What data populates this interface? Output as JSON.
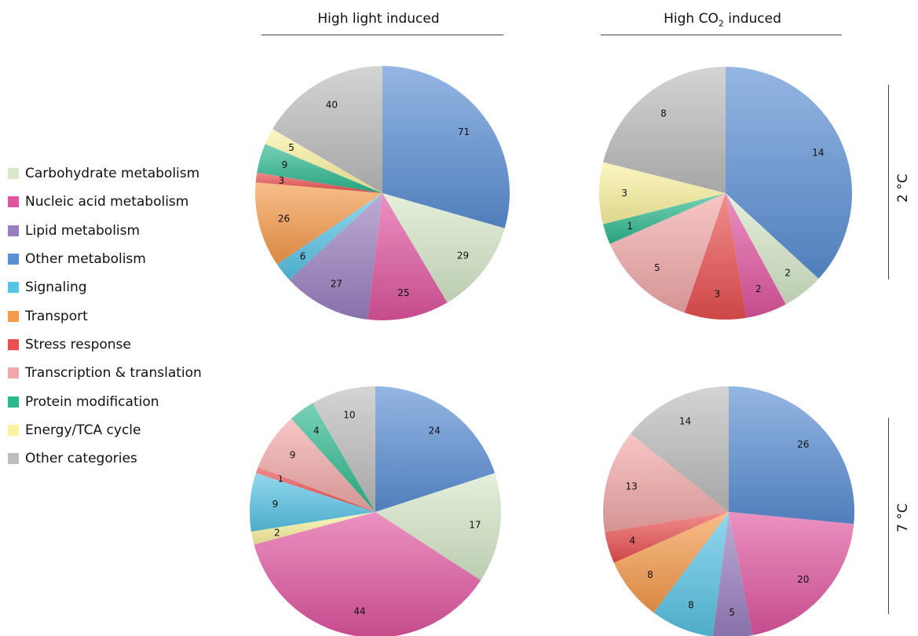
{
  "columns": {
    "left_title": "High light induced",
    "right_title_prefix": "High CO",
    "right_title_sub": "2",
    "right_title_suffix": " induced"
  },
  "rows": {
    "top_label": "2 °C",
    "bottom_label": "7 °C"
  },
  "categories": [
    {
      "name": "Carbohydrate metabolism",
      "color": "#d6e8c8"
    },
    {
      "name": "Nucleic acid metabolism",
      "color": "#e055a0"
    },
    {
      "name": "Lipid metabolism",
      "color": "#9a7fc0"
    },
    {
      "name": "Other metabolism",
      "color": "#5b8fd4"
    },
    {
      "name": "Signaling",
      "color": "#57c3e6"
    },
    {
      "name": "Transport",
      "color": "#f59a4a"
    },
    {
      "name": "Stress response",
      "color": "#ea5050"
    },
    {
      "name": "Transcription & translation",
      "color": "#f2a8a8"
    },
    {
      "name": "Protein modification",
      "color": "#2db88e"
    },
    {
      "name": "Energy/TCA cycle",
      "color": "#fbf3a0"
    },
    {
      "name": "Other categories",
      "color": "#bdbdbd"
    }
  ],
  "chart_data": [
    {
      "type": "pie",
      "title": "High light induced, 2 °C",
      "slices": [
        {
          "category": "Other metabolism",
          "value": 71
        },
        {
          "category": "Carbohydrate metabolism",
          "value": 29
        },
        {
          "category": "Nucleic acid metabolism",
          "value": 25
        },
        {
          "category": "Lipid metabolism",
          "value": 27
        },
        {
          "category": "Signaling",
          "value": 6
        },
        {
          "category": "Transport",
          "value": 26
        },
        {
          "category": "Stress response",
          "value": 3
        },
        {
          "category": "Protein modification",
          "value": 9
        },
        {
          "category": "Energy/TCA cycle",
          "value": 5
        },
        {
          "category": "Other categories",
          "value": 40
        }
      ]
    },
    {
      "type": "pie",
      "title": "High CO2 induced, 2 °C",
      "slices": [
        {
          "category": "Other metabolism",
          "value": 14
        },
        {
          "category": "Carbohydrate metabolism",
          "value": 2
        },
        {
          "category": "Nucleic acid metabolism",
          "value": 2
        },
        {
          "category": "Stress response",
          "value": 3
        },
        {
          "category": "Transcription & translation",
          "value": 5
        },
        {
          "category": "Protein modification",
          "value": 1
        },
        {
          "category": "Energy/TCA cycle",
          "value": 3
        },
        {
          "category": "Other categories",
          "value": 8
        }
      ]
    },
    {
      "type": "pie",
      "title": "High light induced, 7 °C",
      "slices": [
        {
          "category": "Other metabolism",
          "value": 24
        },
        {
          "category": "Carbohydrate metabolism",
          "value": 17
        },
        {
          "category": "Nucleic acid metabolism",
          "value": 44
        },
        {
          "category": "Energy/TCA cycle",
          "value": 2
        },
        {
          "category": "Signaling",
          "value": 9
        },
        {
          "category": "Stress response",
          "value": 1
        },
        {
          "category": "Transcription & translation",
          "value": 9
        },
        {
          "category": "Protein modification",
          "value": 4
        },
        {
          "category": "Other categories",
          "value": 10
        }
      ]
    },
    {
      "type": "pie",
      "title": "High CO2 induced, 7 °C",
      "slices": [
        {
          "category": "Other metabolism",
          "value": 26
        },
        {
          "category": "Nucleic acid metabolism",
          "value": 20
        },
        {
          "category": "Lipid metabolism",
          "value": 5
        },
        {
          "category": "Signaling",
          "value": 8
        },
        {
          "category": "Transport",
          "value": 8
        },
        {
          "category": "Stress response",
          "value": 4
        },
        {
          "category": "Transcription & translation",
          "value": 13
        },
        {
          "category": "Other categories",
          "value": 14
        }
      ]
    }
  ]
}
